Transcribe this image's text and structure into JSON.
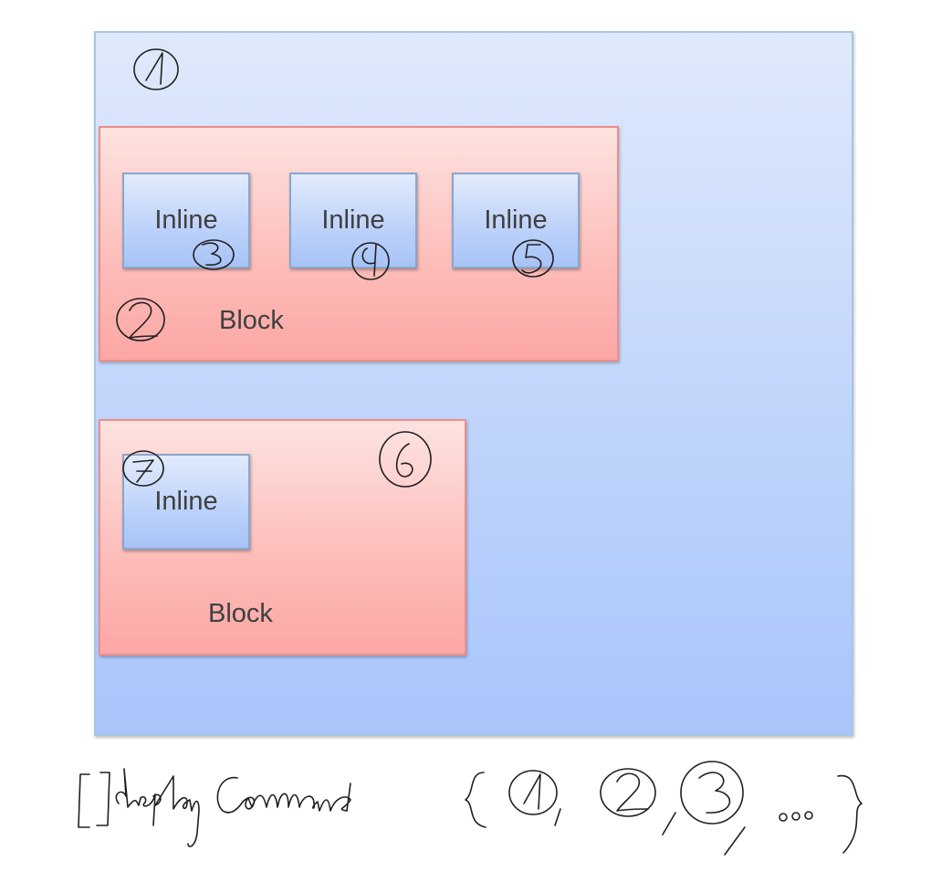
{
  "blocks": [
    {
      "label": "Block",
      "inlines": [
        {
          "label": "Inline"
        },
        {
          "label": "Inline"
        },
        {
          "label": "Inline"
        }
      ]
    },
    {
      "label": "Block",
      "inlines": [
        {
          "label": "Inline"
        }
      ]
    }
  ],
  "handwriting": {
    "numbers": [
      "1",
      "2",
      "3",
      "4",
      "5",
      "6",
      "7"
    ],
    "formula": "[ ] displayCommand { 1 , 2 , 3 , ... }"
  },
  "colors": {
    "root_fill": "#c3d6fb",
    "block_fill": "#fdbcb9",
    "inline_fill": "#bcd1fa",
    "ink": "#202020"
  }
}
